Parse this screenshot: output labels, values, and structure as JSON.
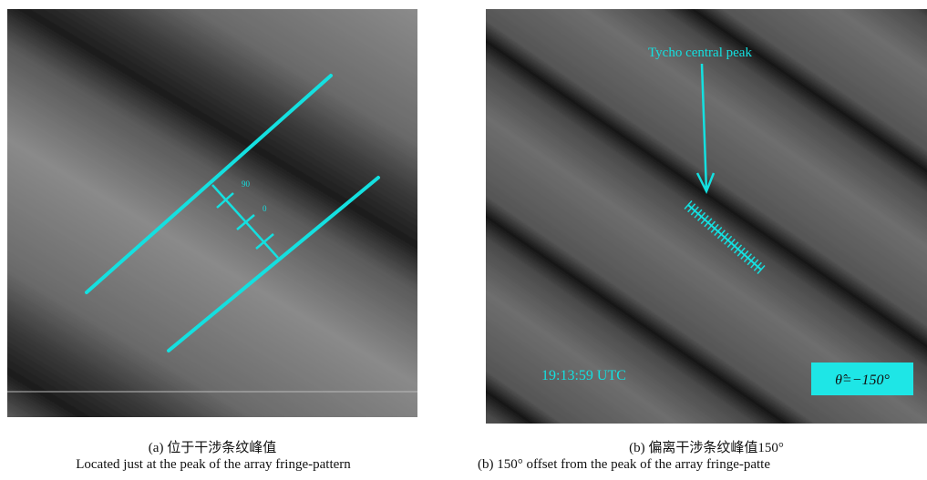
{
  "panels": [
    {
      "annotations": [
        "90",
        "0"
      ],
      "caption_zh": "(a) 位于干涉条纹峰值",
      "caption_en": "Located just at the peak of the array fringe-pattern"
    },
    {
      "annotations": [
        "Tycho central peak",
        "19:13:59 UTC",
        "θ̂=−150°"
      ],
      "caption_zh": "(b) 偏离干涉条纹峰值150°",
      "caption_en": "(b) 150° offset from the peak of the array fringe-patte"
    }
  ]
}
